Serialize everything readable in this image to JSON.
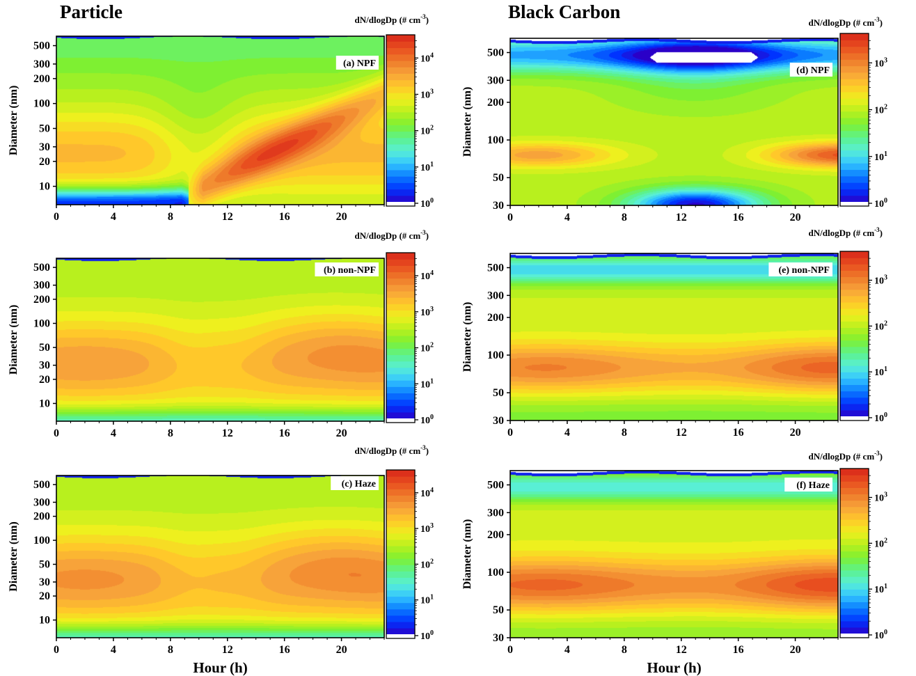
{
  "column_titles": {
    "particle": "Particle",
    "bc": "Black Carbon"
  },
  "colors": {
    "ramp": [
      "#2a00c8",
      "#0033ff",
      "#0a7bff",
      "#33c6ff",
      "#59efd5",
      "#5cf28c",
      "#7ef032",
      "#b8f01e",
      "#eef01e",
      "#ffc82a",
      "#f7a33a",
      "#ee7a2a",
      "#e84e1f",
      "#d8261a"
    ]
  },
  "chart_data": [
    {
      "id": "a",
      "type": "heatmap",
      "panel_label": "(a) NPF",
      "xlabel": "",
      "ylabel": "Diameter (nm)",
      "xlim": [
        0,
        23
      ],
      "ylim": [
        6,
        650
      ],
      "y_scale": "log",
      "xticks": [
        0,
        4,
        8,
        12,
        16,
        20
      ],
      "yticks": [
        10,
        20,
        30,
        50,
        100,
        200,
        300,
        500
      ],
      "colorbar_title": "dN/dlogDp (# cm",
      "colorbar_exp": "-3",
      "colorbar_ticks": [
        {
          "base": "10",
          "exp": "0",
          "v": 0
        },
        {
          "base": "10",
          "exp": "1",
          "v": 1
        },
        {
          "base": "10",
          "exp": "2",
          "v": 2
        },
        {
          "base": "10",
          "exp": "3",
          "v": 3
        },
        {
          "base": "10",
          "exp": "4",
          "v": 4
        }
      ],
      "clim_log": [
        0,
        4.6
      ]
    },
    {
      "id": "b",
      "type": "heatmap",
      "panel_label": "(b) non-NPF",
      "xlabel": "",
      "ylabel": "Diameter (nm)",
      "xlim": [
        0,
        23
      ],
      "ylim": [
        6,
        650
      ],
      "y_scale": "log",
      "xticks": [
        0,
        4,
        8,
        12,
        16,
        20
      ],
      "yticks": [
        10,
        20,
        30,
        50,
        100,
        200,
        300,
        500
      ],
      "colorbar_title": "dN/dlogDp (# cm",
      "colorbar_exp": "-3",
      "colorbar_ticks": [
        {
          "base": "10",
          "exp": "0",
          "v": 0
        },
        {
          "base": "10",
          "exp": "1",
          "v": 1
        },
        {
          "base": "10",
          "exp": "2",
          "v": 2
        },
        {
          "base": "10",
          "exp": "3",
          "v": 3
        },
        {
          "base": "10",
          "exp": "4",
          "v": 4
        }
      ],
      "clim_log": [
        0,
        4.6
      ]
    },
    {
      "id": "c",
      "type": "heatmap",
      "panel_label": "(c) Haze",
      "xlabel": "Hour (h)",
      "ylabel": "Diameter (nm)",
      "xlim": [
        0,
        23
      ],
      "ylim": [
        6,
        650
      ],
      "y_scale": "log",
      "xticks": [
        0,
        4,
        8,
        12,
        16,
        20
      ],
      "yticks": [
        10,
        20,
        30,
        50,
        100,
        200,
        300,
        500
      ],
      "colorbar_title": "dN/dlogDp (# cm",
      "colorbar_exp": "-3",
      "colorbar_ticks": [
        {
          "base": "10",
          "exp": "0",
          "v": 0
        },
        {
          "base": "10",
          "exp": "1",
          "v": 1
        },
        {
          "base": "10",
          "exp": "2",
          "v": 2
        },
        {
          "base": "10",
          "exp": "3",
          "v": 3
        },
        {
          "base": "10",
          "exp": "4",
          "v": 4
        }
      ],
      "clim_log": [
        0,
        4.6
      ]
    },
    {
      "id": "d",
      "type": "heatmap",
      "panel_label": "(d) NPF",
      "xlabel": "",
      "ylabel": "Diameter (nm)",
      "xlim": [
        0,
        23
      ],
      "ylim": [
        30,
        650
      ],
      "y_scale": "log",
      "xticks": [
        0,
        4,
        8,
        12,
        16,
        20
      ],
      "yticks": [
        30,
        50,
        100,
        200,
        300,
        500
      ],
      "colorbar_title": "dN/dlogDp (# cm",
      "colorbar_exp": "-3",
      "colorbar_ticks": [
        {
          "base": "10",
          "exp": "0",
          "v": 0
        },
        {
          "base": "10",
          "exp": "1",
          "v": 1
        },
        {
          "base": "10",
          "exp": "2",
          "v": 2
        },
        {
          "base": "10",
          "exp": "3",
          "v": 3
        }
      ],
      "clim_log": [
        0,
        3.6
      ]
    },
    {
      "id": "e",
      "type": "heatmap",
      "panel_label": "(e) non-NPF",
      "xlabel": "",
      "ylabel": "Diameter (nm)",
      "xlim": [
        0,
        23
      ],
      "ylim": [
        30,
        650
      ],
      "y_scale": "log",
      "xticks": [
        0,
        4,
        8,
        12,
        16,
        20
      ],
      "yticks": [
        30,
        50,
        100,
        200,
        300,
        500
      ],
      "colorbar_title": "dN/dlogDp (# cm",
      "colorbar_exp": "-3",
      "colorbar_ticks": [
        {
          "base": "10",
          "exp": "0",
          "v": 0
        },
        {
          "base": "10",
          "exp": "1",
          "v": 1
        },
        {
          "base": "10",
          "exp": "2",
          "v": 2
        },
        {
          "base": "10",
          "exp": "3",
          "v": 3
        }
      ],
      "clim_log": [
        0,
        3.6
      ]
    },
    {
      "id": "f",
      "type": "heatmap",
      "panel_label": "(f) Haze",
      "xlabel": "Hour (h)",
      "ylabel": "Diameter (nm)",
      "xlim": [
        0,
        23
      ],
      "ylim": [
        30,
        650
      ],
      "y_scale": "log",
      "xticks": [
        0,
        4,
        8,
        12,
        16,
        20
      ],
      "yticks": [
        30,
        50,
        100,
        200,
        300,
        500
      ],
      "colorbar_title": "dN/dlogDp (# cm",
      "colorbar_exp": "-3",
      "colorbar_ticks": [
        {
          "base": "10",
          "exp": "0",
          "v": 0
        },
        {
          "base": "10",
          "exp": "1",
          "v": 1
        },
        {
          "base": "10",
          "exp": "2",
          "v": 2
        },
        {
          "base": "10",
          "exp": "3",
          "v": 3
        }
      ],
      "clim_log": [
        0,
        3.6
      ]
    }
  ]
}
